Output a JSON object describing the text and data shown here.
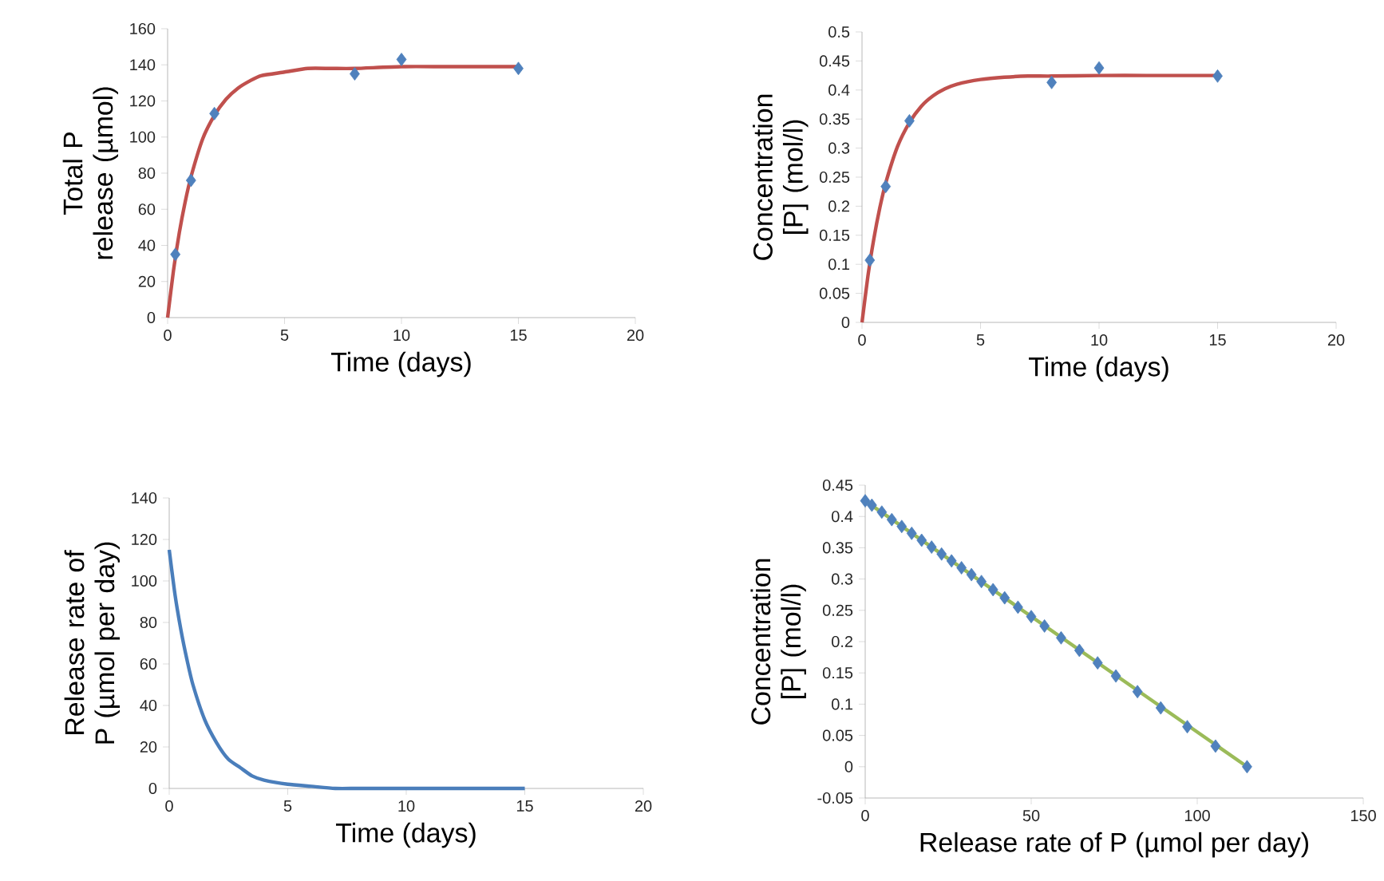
{
  "chart_data": [
    {
      "type": "scatter",
      "xlabel": "Time (days)",
      "ylabel": "Total P release (µmol)",
      "xlim": [
        0,
        20
      ],
      "ylim": [
        0,
        160
      ],
      "xticks": [
        0,
        5,
        10,
        15,
        20
      ],
      "yticks": [
        0,
        20,
        40,
        60,
        80,
        100,
        120,
        140,
        160
      ],
      "series": [
        {
          "marker": "diamond",
          "color": "#4f81bd",
          "x": [
            0.33,
            1,
            2,
            8,
            10,
            15
          ],
          "values": [
            35,
            76,
            113,
            135,
            143,
            138
          ]
        },
        {
          "type": "line",
          "marker": "none",
          "color": "#c0504d",
          "x": [
            0,
            0.25,
            0.5,
            0.75,
            1,
            1.5,
            2,
            2.5,
            3,
            3.5,
            4,
            5,
            6,
            7,
            8,
            10,
            12,
            15
          ],
          "values": [
            0,
            26,
            47,
            64,
            78,
            99,
            112,
            121,
            127,
            131,
            134,
            136,
            138,
            138,
            138,
            139,
            139,
            139
          ]
        }
      ]
    },
    {
      "type": "scatter",
      "xlabel": "Time (days)",
      "ylabel": "Concentration [P] (mol/l)",
      "xlim": [
        0,
        20
      ],
      "ylim": [
        0,
        0.5
      ],
      "xticks": [
        0,
        5,
        10,
        15,
        20
      ],
      "yticks": [
        0,
        0.05,
        0.1,
        0.15,
        0.2,
        0.25,
        0.3,
        0.35,
        0.4,
        0.45,
        0.5
      ],
      "series": [
        {
          "marker": "diamond",
          "color": "#4f81bd",
          "x": [
            0.33,
            1,
            2,
            8,
            10,
            15
          ],
          "values": [
            0.107,
            0.234,
            0.347,
            0.413,
            0.438,
            0.424
          ]
        },
        {
          "type": "line",
          "marker": "none",
          "color": "#c0504d",
          "x": [
            0,
            0.25,
            0.5,
            0.75,
            1,
            1.5,
            2,
            2.5,
            3,
            3.5,
            4,
            5,
            6,
            7,
            8,
            10,
            12,
            15
          ],
          "values": [
            0,
            0.08,
            0.144,
            0.197,
            0.24,
            0.303,
            0.344,
            0.372,
            0.39,
            0.402,
            0.41,
            0.418,
            0.422,
            0.424,
            0.424,
            0.425,
            0.425,
            0.425
          ]
        }
      ]
    },
    {
      "type": "line",
      "xlabel": "Time (days)",
      "ylabel": "Release rate of P (µmol per day)",
      "xlim": [
        0,
        20
      ],
      "ylim": [
        0,
        140
      ],
      "xticks": [
        0,
        5,
        10,
        15,
        20
      ],
      "yticks": [
        0,
        20,
        40,
        60,
        80,
        100,
        120,
        140
      ],
      "series": [
        {
          "marker": "none",
          "color": "#4a7ebb",
          "x": [
            0,
            0.25,
            0.5,
            0.75,
            1,
            1.5,
            2,
            2.5,
            3,
            3.5,
            4,
            5,
            6,
            7,
            8,
            10,
            12,
            15
          ],
          "values": [
            115,
            93,
            76,
            62,
            50,
            33,
            22,
            14,
            10,
            6,
            4,
            2,
            1,
            0,
            0,
            0,
            0,
            0
          ]
        }
      ]
    },
    {
      "type": "scatter",
      "xlabel": "Release rate of P (µmol per day)",
      "ylabel": "Concentration [P] (mol/l)",
      "xlim": [
        0,
        150
      ],
      "ylim": [
        -0.05,
        0.45
      ],
      "xticks": [
        0,
        50,
        100,
        150
      ],
      "yticks": [
        -0.05,
        0,
        0.05,
        0.1,
        0.15,
        0.2,
        0.25,
        0.3,
        0.35,
        0.4,
        0.45
      ],
      "series": [
        {
          "marker": "diamond",
          "color": "#4f81bd",
          "x": [
            0,
            2,
            5,
            8,
            11,
            14,
            17,
            20,
            23,
            26,
            29,
            32,
            35,
            38.5,
            42,
            46,
            50,
            54,
            59,
            64.5,
            70,
            75.5,
            82,
            89,
            97,
            105.5,
            115
          ],
          "values": [
            0.425,
            0.418,
            0.407,
            0.395,
            0.384,
            0.373,
            0.362,
            0.351,
            0.34,
            0.329,
            0.318,
            0.307,
            0.296,
            0.283,
            0.27,
            0.255,
            0.24,
            0.225,
            0.206,
            0.186,
            0.166,
            0.145,
            0.12,
            0.094,
            0.064,
            0.033,
            0
          ]
        },
        {
          "type": "line",
          "marker": "none",
          "color": "#9bbb59",
          "x": [
            0,
            115
          ],
          "values": [
            0.425,
            0
          ]
        }
      ]
    }
  ]
}
